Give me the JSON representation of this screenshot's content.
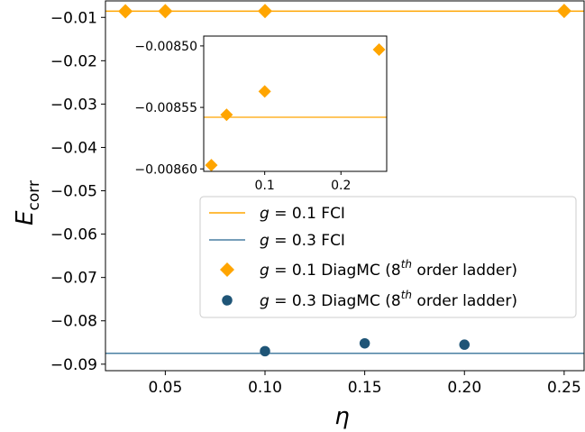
{
  "colors": {
    "g01": "#FFA500",
    "g03": "#1F5577",
    "fci_g01": "#FFA500",
    "fci_g03": "#4A7FA2"
  },
  "chart_data": [
    {
      "type": "scatter",
      "xlabel": "η",
      "ylabel_main": "E",
      "ylabel_sub": "corr",
      "xlim": [
        0.02,
        0.26
      ],
      "ylim": [
        -0.0915,
        -0.0062
      ],
      "xticks": [
        0.05,
        0.1,
        0.15,
        0.2,
        0.25
      ],
      "xtick_labels": [
        "0.05",
        "0.10",
        "0.15",
        "0.20",
        "0.25"
      ],
      "yticks": [
        -0.01,
        -0.02,
        -0.03,
        -0.04,
        -0.05,
        -0.06,
        -0.07,
        -0.08,
        -0.09
      ],
      "ytick_labels": [
        "−0.01",
        "−0.02",
        "−0.03",
        "−0.04",
        "−0.05",
        "−0.06",
        "−0.07",
        "−0.08",
        "−0.09"
      ],
      "grid": false,
      "legend_position": "lower-right",
      "hlines": [
        {
          "name": "g = 0.1 FCI",
          "y": -0.008558,
          "color_key": "fci_g01"
        },
        {
          "name": "g = 0.3 FCI",
          "y": -0.0875,
          "color_key": "fci_g03"
        }
      ],
      "series": [
        {
          "name": "g = 0.1 DiagMC (8th order ladder)",
          "marker": "diamond",
          "color_key": "g01",
          "x": [
            0.03,
            0.05,
            0.1,
            0.25
          ],
          "y": [
            -0.008597,
            -0.008556,
            -0.008537,
            -0.008503
          ]
        },
        {
          "name": "g = 0.3 DiagMC (8th order ladder)",
          "marker": "circle",
          "color_key": "g03",
          "x": [
            0.1,
            0.15,
            0.2
          ],
          "y": [
            -0.087,
            -0.0852,
            -0.0855
          ]
        }
      ],
      "legend": [
        {
          "italic": "g",
          "rest": " = 0.1 FCI",
          "sup": ""
        },
        {
          "italic": "g",
          "rest": " = 0.3 FCI",
          "sup": ""
        },
        {
          "italic": "g",
          "rest": " = 0.1 DiagMC (8",
          "sup": "th",
          "tail": " order ladder)"
        },
        {
          "italic": "g",
          "rest": " = 0.3 DiagMC (8",
          "sup": "th",
          "tail": " order ladder)"
        }
      ]
    },
    {
      "type": "scatter",
      "inset": true,
      "xlim": [
        0.02,
        0.26
      ],
      "ylim": [
        -0.008602,
        -0.008492
      ],
      "xticks": [
        0.1,
        0.2
      ],
      "xtick_labels": [
        "0.1",
        "0.2"
      ],
      "yticks": [
        -0.0085,
        -0.00855,
        -0.0086
      ],
      "ytick_labels": [
        "−0.00850",
        "−0.00855",
        "−0.00860"
      ],
      "hlines": [
        {
          "y": -0.008558,
          "color_key": "fci_g01"
        }
      ],
      "series": [
        {
          "marker": "diamond",
          "color_key": "g01",
          "x": [
            0.03,
            0.05,
            0.1,
            0.25
          ],
          "y": [
            -0.008597,
            -0.008556,
            -0.008537,
            -0.008503
          ]
        }
      ]
    }
  ]
}
